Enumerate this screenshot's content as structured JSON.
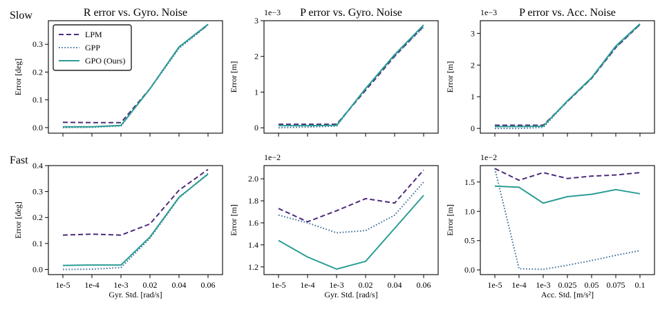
{
  "row_labels": [
    "Slow",
    "Fast"
  ],
  "legend": [
    {
      "name": "LPM",
      "color": "#4b2a7b",
      "dash": "dashed"
    },
    {
      "name": "GPP",
      "color": "#3f6e9a",
      "dash": "dotted"
    },
    {
      "name": "GPO (Ours)",
      "color": "#2a9d94",
      "dash": "solid"
    }
  ],
  "chart_data": [
    {
      "type": "line",
      "row": "Slow",
      "title": "R error vs. Gyro. Noise",
      "ylabel": "Error [deg]",
      "xlabel": "",
      "categories": [
        "1e-5",
        "1e-4",
        "1e-3",
        "0.02",
        "0.04",
        "0.06"
      ],
      "ylim": [
        -0.02,
        0.385
      ],
      "yticks": [
        0.0,
        0.1,
        0.2,
        0.3
      ],
      "ytick_labels": [
        "0.0",
        "0.1",
        "0.2",
        "0.3"
      ],
      "exponent": "",
      "show_xtick_labels": false,
      "legend": "upper-left",
      "series": [
        {
          "name": "LPM",
          "values": [
            0.019,
            0.018,
            0.018,
            0.14,
            0.29,
            0.37
          ]
        },
        {
          "name": "GPP",
          "values": [
            0.0,
            0.001,
            0.006,
            0.14,
            0.285,
            0.37
          ]
        },
        {
          "name": "GPO (Ours)",
          "values": [
            0.003,
            0.003,
            0.008,
            0.14,
            0.29,
            0.372
          ]
        }
      ]
    },
    {
      "type": "line",
      "row": "Slow",
      "title": "P error vs. Gyro. Noise",
      "ylabel": "Error [m]",
      "xlabel": "",
      "categories": [
        "1e-5",
        "1e-4",
        "1e-3",
        "0.02",
        "0.04",
        "0.06"
      ],
      "ylim": [
        -0.15,
        3.0
      ],
      "yticks": [
        0,
        1,
        2,
        3
      ],
      "ytick_labels": [
        "0",
        "1",
        "2",
        "3"
      ],
      "exponent": "1e−3",
      "show_xtick_labels": false,
      "series": [
        {
          "name": "LPM",
          "values": [
            0.1,
            0.1,
            0.1,
            1.05,
            2.0,
            2.85
          ]
        },
        {
          "name": "GPP",
          "values": [
            0.0,
            0.02,
            0.05,
            1.1,
            2.02,
            2.82
          ]
        },
        {
          "name": "GPO (Ours)",
          "values": [
            0.06,
            0.06,
            0.07,
            1.1,
            2.05,
            2.88
          ]
        }
      ]
    },
    {
      "type": "line",
      "row": "Slow",
      "title": "P error vs. Acc. Noise",
      "ylabel": "Error [m]",
      "xlabel": "",
      "categories": [
        "1e-5",
        "1e-4",
        "1e-3",
        "0.025",
        "0.05",
        "0.075",
        "0.1"
      ],
      "ylim": [
        -0.15,
        3.4
      ],
      "yticks": [
        0,
        1,
        2,
        3
      ],
      "ytick_labels": [
        "0",
        "1",
        "2",
        "3"
      ],
      "exponent": "1e−3",
      "show_xtick_labels": false,
      "series": [
        {
          "name": "LPM",
          "values": [
            0.1,
            0.1,
            0.1,
            0.85,
            1.58,
            2.55,
            3.28
          ]
        },
        {
          "name": "GPP",
          "values": [
            0.0,
            0.0,
            0.03,
            0.85,
            1.58,
            2.55,
            3.28
          ]
        },
        {
          "name": "GPO (Ours)",
          "values": [
            0.06,
            0.06,
            0.07,
            0.87,
            1.6,
            2.6,
            3.3
          ]
        }
      ]
    },
    {
      "type": "line",
      "row": "Fast",
      "title": "",
      "ylabel": "Error [deg]",
      "xlabel": "Gyr. Std. [rad/s]",
      "categories": [
        "1e-5",
        "1e-4",
        "1e-3",
        "0.02",
        "0.04",
        "0.06"
      ],
      "ylim": [
        -0.02,
        0.4
      ],
      "yticks": [
        0.0,
        0.1,
        0.2,
        0.3,
        0.4
      ],
      "ytick_labels": [
        "0.0",
        "0.1",
        "0.2",
        "0.3",
        "0.4"
      ],
      "exponent": "",
      "show_xtick_labels": true,
      "series": [
        {
          "name": "LPM",
          "values": [
            0.132,
            0.136,
            0.132,
            0.175,
            0.305,
            0.385
          ]
        },
        {
          "name": "GPP",
          "values": [
            0.0,
            0.001,
            0.007,
            0.12,
            0.275,
            0.37
          ]
        },
        {
          "name": "GPO (Ours)",
          "values": [
            0.015,
            0.017,
            0.017,
            0.125,
            0.278,
            0.367
          ]
        }
      ]
    },
    {
      "type": "line",
      "row": "Fast",
      "title": "",
      "ylabel": "Error [m]",
      "xlabel": "Gyr. Std. [rad/s]",
      "categories": [
        "1e-5",
        "1e-4",
        "1e-3",
        "0.02",
        "0.04",
        "0.06"
      ],
      "ylim": [
        1.13,
        2.12
      ],
      "yticks": [
        1.2,
        1.4,
        1.6,
        1.8,
        2.0
      ],
      "ytick_labels": [
        "1.2",
        "1.4",
        "1.6",
        "1.8",
        "2.0"
      ],
      "exponent": "1e−2",
      "show_xtick_labels": true,
      "series": [
        {
          "name": "LPM",
          "values": [
            1.73,
            1.61,
            1.71,
            1.82,
            1.78,
            2.08
          ]
        },
        {
          "name": "GPP",
          "values": [
            1.67,
            1.6,
            1.51,
            1.53,
            1.67,
            1.97
          ]
        },
        {
          "name": "GPO (Ours)",
          "values": [
            1.44,
            1.29,
            1.18,
            1.25,
            1.55,
            1.85
          ]
        }
      ]
    },
    {
      "type": "line",
      "row": "Fast",
      "title": "",
      "ylabel": "Error [m]",
      "xlabel": "Acc. Std. [m/s²]",
      "categories": [
        "1e-5",
        "1e-4",
        "1e-3",
        "0.025",
        "0.05",
        "0.075",
        "0.1"
      ],
      "ylim": [
        -0.08,
        1.78
      ],
      "yticks": [
        0.0,
        0.5,
        1.0,
        1.5
      ],
      "ytick_labels": [
        "0.0",
        "0.5",
        "1.0",
        "1.5"
      ],
      "exponent": "1e−2",
      "show_xtick_labels": true,
      "series": [
        {
          "name": "LPM",
          "values": [
            1.73,
            1.53,
            1.66,
            1.56,
            1.6,
            1.62,
            1.66
          ]
        },
        {
          "name": "GPP",
          "values": [
            1.73,
            0.02,
            0.01,
            0.08,
            0.16,
            0.25,
            0.33
          ]
        },
        {
          "name": "GPO (Ours)",
          "values": [
            1.43,
            1.41,
            1.14,
            1.25,
            1.29,
            1.37,
            1.3
          ]
        }
      ]
    }
  ]
}
